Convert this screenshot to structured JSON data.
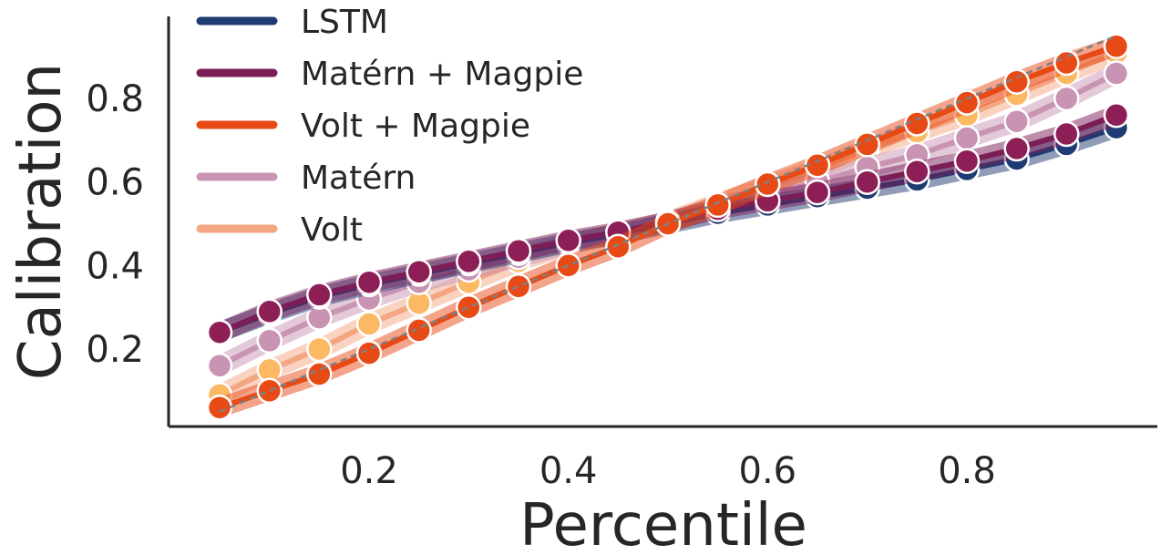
{
  "chart_data": {
    "type": "line",
    "title": "",
    "xlabel": "Percentile",
    "ylabel": "Calibration",
    "xlim": [
      0.0,
      1.0
    ],
    "ylim": [
      0.0,
      1.0
    ],
    "xticks": [
      {
        "value": 0.2,
        "label": "0.2"
      },
      {
        "value": 0.4,
        "label": "0.4"
      },
      {
        "value": 0.6,
        "label": "0.6"
      },
      {
        "value": 0.8,
        "label": "0.8"
      }
    ],
    "yticks": [
      {
        "value": 0.2,
        "label": "0.2"
      },
      {
        "value": 0.4,
        "label": "0.4"
      },
      {
        "value": 0.6,
        "label": "0.6"
      },
      {
        "value": 0.8,
        "label": "0.8"
      }
    ],
    "grid": false,
    "legend_position": "top-left",
    "x": [
      0.05,
      0.1,
      0.15,
      0.2,
      0.25,
      0.3,
      0.35,
      0.4,
      0.45,
      0.5,
      0.55,
      0.6,
      0.65,
      0.7,
      0.75,
      0.8,
      0.85,
      0.9,
      0.95
    ],
    "reference_line": {
      "description": "ideal calibration y = x",
      "color": "#808080",
      "from": [
        0.05,
        0.05
      ],
      "to": [
        0.95,
        0.95
      ]
    },
    "series": [
      {
        "name": "Volt",
        "color": "#f4a582",
        "marker_color": "#fdb863",
        "values": [
          0.09,
          0.15,
          0.2,
          0.26,
          0.31,
          0.36,
          0.41,
          0.45,
          0.48,
          0.505,
          0.55,
          0.59,
          0.63,
          0.68,
          0.72,
          0.76,
          0.81,
          0.86,
          0.91
        ]
      },
      {
        "name": "Matérn",
        "color": "#c994b3",
        "marker_color": "#c994b3",
        "values": [
          0.16,
          0.22,
          0.275,
          0.32,
          0.36,
          0.39,
          0.42,
          0.45,
          0.475,
          0.505,
          0.54,
          0.57,
          0.6,
          0.635,
          0.665,
          0.705,
          0.745,
          0.8,
          0.86
        ]
      },
      {
        "name": "LSTM",
        "color": "#1f3b73",
        "marker_color": "#1f3b73",
        "values": [
          0.24,
          0.285,
          0.325,
          0.355,
          0.38,
          0.405,
          0.43,
          0.455,
          0.475,
          0.5,
          0.525,
          0.545,
          0.565,
          0.585,
          0.605,
          0.63,
          0.655,
          0.69,
          0.73
        ]
      },
      {
        "name": "Matérn + Magpie",
        "color": "#7b1d57",
        "marker_color": "#8e1f56",
        "values": [
          0.24,
          0.29,
          0.33,
          0.36,
          0.385,
          0.41,
          0.435,
          0.46,
          0.48,
          0.505,
          0.535,
          0.555,
          0.575,
          0.6,
          0.625,
          0.65,
          0.68,
          0.715,
          0.76
        ]
      },
      {
        "name": "Volt + Magpie",
        "color": "#e84a16",
        "marker_color": "#e84a16",
        "values": [
          0.06,
          0.1,
          0.14,
          0.19,
          0.245,
          0.3,
          0.35,
          0.4,
          0.445,
          0.5,
          0.545,
          0.595,
          0.64,
          0.69,
          0.74,
          0.79,
          0.84,
          0.885,
          0.925
        ]
      }
    ],
    "legend": [
      {
        "name": "LSTM",
        "color": "#1f3b73"
      },
      {
        "name": "Matérn + Magpie",
        "color": "#7b1d57"
      },
      {
        "name": "Volt + Magpie",
        "color": "#e84a16"
      },
      {
        "name": "Matérn",
        "color": "#c994b3"
      },
      {
        "name": "Volt",
        "color": "#f4a582"
      }
    ]
  }
}
